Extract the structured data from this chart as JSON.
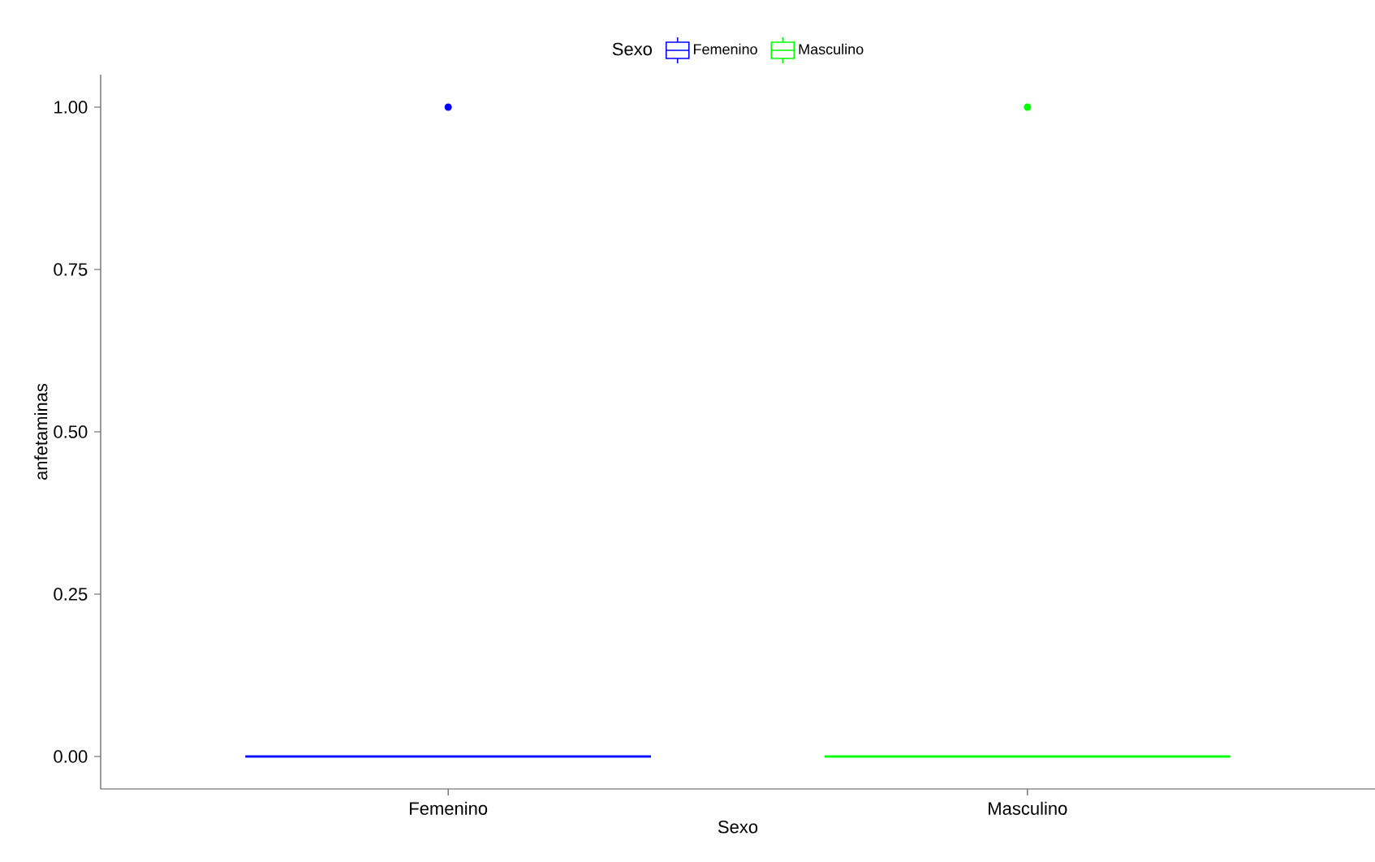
{
  "chart_data": {
    "type": "box",
    "xlabel": "Sexo",
    "ylabel": "anfetaminas",
    "legend_title": "Sexo",
    "legend": "top",
    "categories": [
      "Femenino",
      "Masculino"
    ],
    "ylim": [
      -0.05,
      1.05
    ],
    "yticks": [
      {
        "value": 0,
        "label": "0.00"
      },
      {
        "value": 0.25,
        "label": "0.25"
      },
      {
        "value": 0.5,
        "label": "0.50"
      },
      {
        "value": 0.75,
        "label": "0.75"
      },
      {
        "value": 1,
        "label": "1.00"
      }
    ],
    "grid": false,
    "series": [
      {
        "name": "Femenino",
        "color": "#0000ff",
        "boxes": [
          {
            "low": 0,
            "q1": 0,
            "median": 0,
            "q3": 0,
            "high": 0,
            "outliers": [
              1
            ]
          },
          null
        ]
      },
      {
        "name": "Masculino",
        "color": "#00ff00",
        "boxes": [
          null,
          {
            "low": 0,
            "q1": 0,
            "median": 0,
            "q3": 0,
            "high": 0,
            "outliers": [
              1
            ]
          }
        ]
      }
    ]
  }
}
